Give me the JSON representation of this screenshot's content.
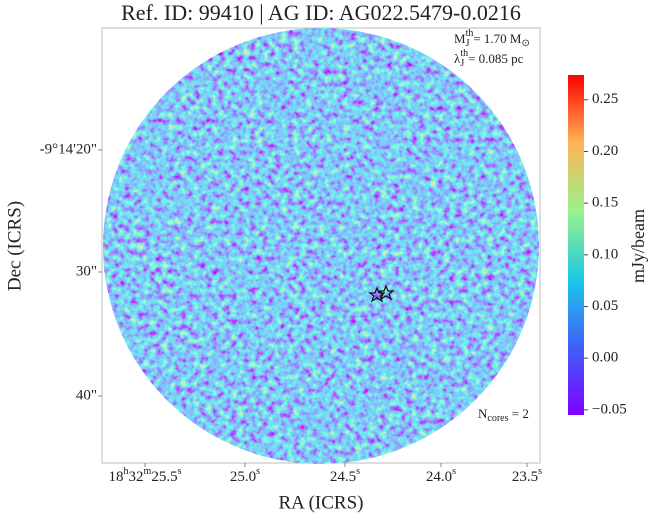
{
  "chart_data": {
    "type": "image",
    "title": "Ref. ID: 99410 | AG ID: AG022.5479-0.0216",
    "xlabel": "RA (ICRS)",
    "ylabel": "Dec (ICRS)",
    "xticks": [
      [
        "18",
        "h",
        "32",
        "m",
        "25.5",
        "s"
      ],
      [
        "25.0",
        "s"
      ],
      [
        "24.5",
        "s"
      ],
      [
        "24.0",
        "s"
      ],
      [
        "23.5",
        "s"
      ]
    ],
    "yticks": [
      "-9°14'20\"",
      "30\"",
      "40\""
    ],
    "annotations": [
      [
        {
          "text": "M"
        },
        {
          "text": "J",
          "pos": "sub"
        },
        {
          "text": "th",
          "pos": "sup"
        },
        {
          "text": "= 1.70 M"
        },
        {
          "text": "⊙",
          "pos": "sub"
        }
      ],
      [
        {
          "text": "λ"
        },
        {
          "text": "J",
          "pos": "sub"
        },
        {
          "text": "th",
          "pos": "sup"
        },
        {
          "text": "= 0.085 pc"
        }
      ],
      [
        {
          "text": "N"
        },
        {
          "text": "cores",
          "pos": "sub"
        },
        {
          "text": " = 2"
        }
      ]
    ],
    "colorbar": {
      "label": "mJy/beam",
      "clim": [
        -0.055,
        0.274
      ],
      "ticks": [
        0.25,
        {
          "value": 0.2,
          "label": "0.20"
        },
        0.15,
        {
          "value": 0.1,
          "label": "0.10"
        },
        0.05,
        {
          "value": 0,
          "label": "0.00"
        },
        {
          "value": -0.05,
          "label": "−0.05"
        }
      ],
      "colormap": [
        "#7f00ff",
        "#3e60fa",
        "#1ec8e6",
        "#9af28a",
        "#ffb455",
        "#ff0000"
      ]
    }
  }
}
